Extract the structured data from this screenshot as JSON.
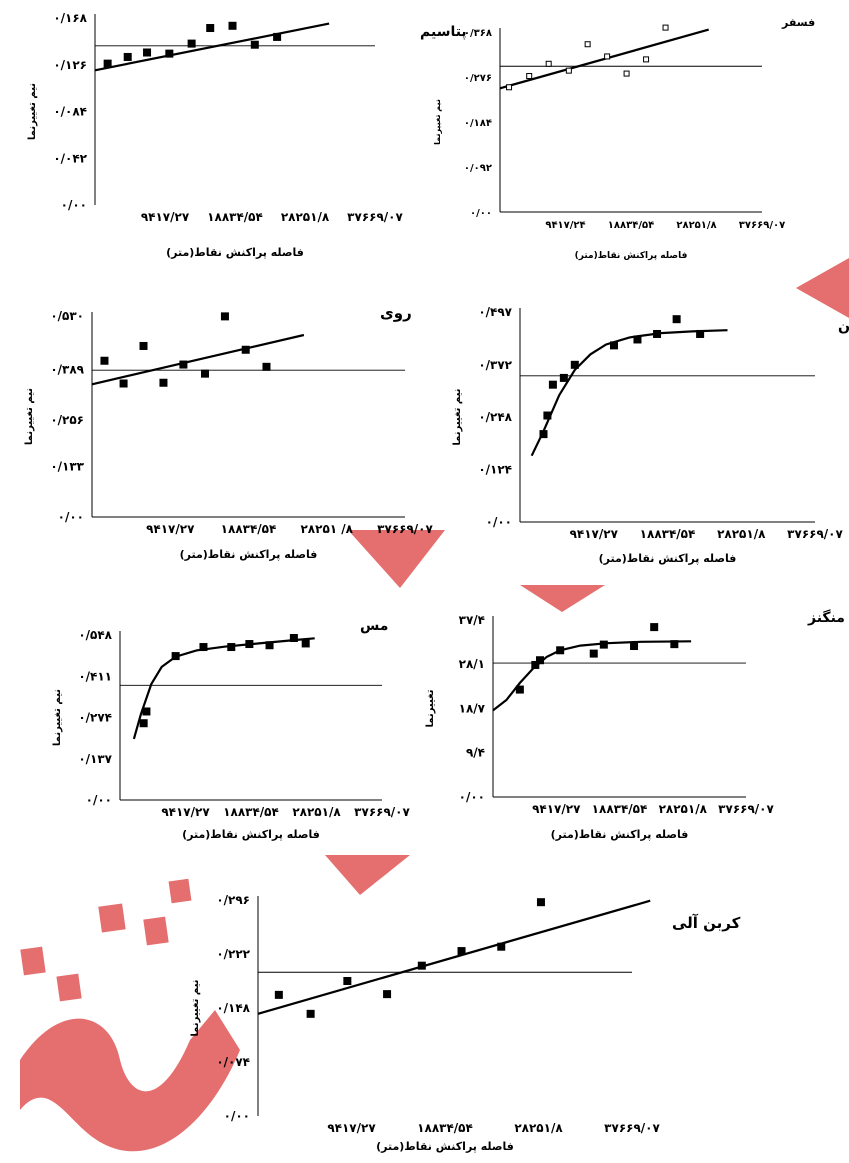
{
  "watermark": {
    "color": "#e05555"
  },
  "chart_data": [
    {
      "id": "potassium",
      "type": "scatter",
      "fit": "linear",
      "title": "پتاسیم",
      "ylabel": "نیم تغییرنما",
      "xlabel": "فاصله پراکنش نقاط(متر)",
      "ytick_labels": [
        "۰/۰۰",
        "۰/۰۴۲",
        "۰/۰۸۴",
        "۰/۱۲۶",
        "۰/۱۶۸"
      ],
      "yticks": [
        0,
        0.042,
        0.084,
        0.126,
        0.168
      ],
      "ylim": [
        0,
        0.168
      ],
      "xtick_labels": [
        "۹۴۱۷/۲۷",
        "۱۸۸۳۴/۵۴",
        "۲۸۲۵۱/۸",
        "۳۷۶۶۹/۰۷"
      ],
      "xticks": [
        9417.27,
        18834.54,
        28251.8,
        37669.07
      ],
      "xlim": [
        0,
        37669.07
      ],
      "sill": 0.143,
      "points": [
        [
          1700,
          0.127
        ],
        [
          4400,
          0.133
        ],
        [
          7000,
          0.137
        ],
        [
          10000,
          0.136
        ],
        [
          13000,
          0.145
        ],
        [
          15500,
          0.159
        ],
        [
          18500,
          0.161
        ],
        [
          21500,
          0.144
        ],
        [
          24500,
          0.151
        ]
      ],
      "line": [
        [
          0,
          0.121
        ],
        [
          31500,
          0.163
        ]
      ],
      "box": false
    },
    {
      "id": "phosphorus",
      "type": "scatter",
      "fit": "linear",
      "title": "فسفر",
      "ylabel": "نیم تغییرنما",
      "xlabel": "فاصله پراکنش نقاط(متر)",
      "ytick_labels": [
        "۰/۰۰",
        "۰/۰۹۲",
        "۰/۱۸۴",
        "۰/۲۷۶",
        "۰/۳۶۸"
      ],
      "yticks": [
        0,
        0.092,
        0.184,
        0.276,
        0.368
      ],
      "ylim": [
        0,
        0.368
      ],
      "xtick_labels": [
        "۹۴۱۷/۲۴",
        "۱۸۸۳۴/۵۴",
        "۲۸۲۵۱/۸",
        "۳۷۶۶۹/۰۷"
      ],
      "xticks": [
        9417.24,
        18834.54,
        28251.8,
        37669.07
      ],
      "xlim": [
        0,
        37669.07
      ],
      "sill": 0.298,
      "points": [
        [
          1300,
          0.255
        ],
        [
          4200,
          0.278
        ],
        [
          7000,
          0.303
        ],
        [
          9900,
          0.289
        ],
        [
          12600,
          0.343
        ],
        [
          15400,
          0.318
        ],
        [
          18200,
          0.283
        ],
        [
          21000,
          0.312
        ],
        [
          23800,
          0.377
        ]
      ],
      "line": [
        [
          0,
          0.253
        ],
        [
          30000,
          0.373
        ]
      ],
      "box": true
    },
    {
      "id": "zinc",
      "type": "scatter",
      "fit": "linear",
      "title": "روی",
      "ylabel": "نیم تغییرنما",
      "xlabel": "فاصله پراکنش نقاط(متر)",
      "ytick_labels": [
        "۰/۰۰",
        "۰/۱۳۳",
        "۰/۲۵۶",
        "۰/۳۸۹",
        "۰/۵۳۰"
      ],
      "yticks": [
        0,
        0.133,
        0.256,
        0.389,
        0.53
      ],
      "ylim": [
        0,
        0.53
      ],
      "xtick_labels": [
        "۹۴۱۷/۲۷",
        "۱۸۸۳۴/۵۴",
        "۲۸۲۵۱ /۸",
        "۳۷۶۶۹/۰۷"
      ],
      "xticks": [
        9417.27,
        18834.54,
        28251.8,
        37669.07
      ],
      "xlim": [
        0,
        37669.07
      ],
      "sill": 0.387,
      "points": [
        [
          1500,
          0.412
        ],
        [
          3800,
          0.352
        ],
        [
          6200,
          0.451
        ],
        [
          8600,
          0.354
        ],
        [
          11000,
          0.402
        ],
        [
          13600,
          0.378
        ],
        [
          16000,
          0.529
        ],
        [
          18500,
          0.441
        ],
        [
          21000,
          0.396
        ]
      ],
      "line": [
        [
          0,
          0.35
        ],
        [
          25500,
          0.48
        ]
      ],
      "box": true
    },
    {
      "id": "iron",
      "type": "scatter",
      "fit": "spherical",
      "title": "آهن",
      "ylabel": "نیم تغییرنما",
      "xlabel": "فاصله پراکنش نقاط(متر)",
      "ytick_labels": [
        "۰/۰۰",
        "۰/۱۲۴",
        "۰/۲۴۸",
        "۰/۳۷۲",
        "۰/۴۹۷"
      ],
      "yticks": [
        0,
        0.124,
        0.248,
        0.372,
        0.497
      ],
      "ylim": [
        0,
        0.497
      ],
      "xtick_labels": [
        "۹۴۱۷/۲۷",
        "۱۸۸۳۴/۵۴",
        "۲۸۲۵۱/۸",
        "۳۷۶۶۹/۰۷"
      ],
      "xticks": [
        9417.27,
        18834.54,
        28251.8,
        37669.07
      ],
      "xlim": [
        0,
        37669.07
      ],
      "sill": 0.346,
      "points": [
        [
          3000,
          0.208
        ],
        [
          3500,
          0.252
        ],
        [
          4200,
          0.325
        ],
        [
          5600,
          0.341
        ],
        [
          7000,
          0.372
        ],
        [
          12000,
          0.418
        ],
        [
          15000,
          0.432
        ],
        [
          17500,
          0.445
        ],
        [
          20000,
          0.48
        ],
        [
          23000,
          0.445
        ]
      ],
      "line": [
        [
          1500,
          0.157
        ],
        [
          3000,
          0.215
        ],
        [
          5000,
          0.3
        ],
        [
          7000,
          0.36
        ],
        [
          9000,
          0.397
        ],
        [
          11000,
          0.42
        ],
        [
          14000,
          0.437
        ],
        [
          18000,
          0.447
        ],
        [
          22000,
          0.451
        ],
        [
          26500,
          0.454
        ]
      ],
      "box": true
    },
    {
      "id": "copper",
      "type": "scatter",
      "fit": "spherical",
      "title": "مس",
      "ylabel": "نیم تغییرنما",
      "xlabel": "فاصله پراکنش نقاط(متر)",
      "ytick_labels": [
        "۰/۰۰",
        "۰/۱۳۷",
        "۰/۲۷۴",
        "۰/۴۱۱",
        "۰/۵۴۸"
      ],
      "yticks": [
        0,
        0.137,
        0.274,
        0.411,
        0.548
      ],
      "ylim": [
        0,
        0.548
      ],
      "xtick_labels": [
        "۹۴۱۷/۲۷",
        "۱۸۸۳۴/۵۴",
        "۲۸۲۵۱/۸",
        "۳۷۶۶۹/۰۷"
      ],
      "xticks": [
        9417.27,
        18834.54,
        28251.8,
        37669.07
      ],
      "xlim": [
        0,
        37669.07
      ],
      "sill": 0.381,
      "points": [
        [
          3400,
          0.255
        ],
        [
          3800,
          0.294
        ],
        [
          8000,
          0.478
        ],
        [
          12000,
          0.508
        ],
        [
          16000,
          0.508
        ],
        [
          18600,
          0.518
        ],
        [
          21500,
          0.514
        ],
        [
          25000,
          0.538
        ],
        [
          26700,
          0.52
        ]
      ],
      "line": [
        [
          2000,
          0.203
        ],
        [
          3000,
          0.285
        ],
        [
          4500,
          0.385
        ],
        [
          6000,
          0.442
        ],
        [
          8000,
          0.476
        ],
        [
          11000,
          0.497
        ],
        [
          15000,
          0.509
        ],
        [
          20000,
          0.52
        ],
        [
          25000,
          0.531
        ],
        [
          28000,
          0.537
        ]
      ],
      "box": true
    },
    {
      "id": "manganese",
      "type": "scatter",
      "fit": "spherical",
      "title": "منگنز",
      "ylabel": "تغییرنما",
      "xlabel": "فاصله پراکنش نقاط(متر)",
      "ytick_labels": [
        "۰/۰۰",
        "۹/۴",
        "۱۸/۷",
        "۲۸/۱",
        "۳۷/۴"
      ],
      "yticks": [
        0,
        9.4,
        18.7,
        28.1,
        37.4
      ],
      "ylim": [
        0,
        37.4
      ],
      "xtick_labels": [
        "۹۴۱۷/۲۷",
        "۱۸۸۳۴/۵۴",
        "۲۸۲۵۱/۸",
        "۳۷۶۶۹/۰۷"
      ],
      "xticks": [
        9417.27,
        18834.54,
        28251.8,
        37669.07
      ],
      "xlim": [
        0,
        37669.07
      ],
      "sill": 28.3,
      "points": [
        [
          4000,
          22.7
        ],
        [
          6300,
          27.9
        ],
        [
          7000,
          28.9
        ],
        [
          10000,
          31.0
        ],
        [
          15000,
          30.3
        ],
        [
          16500,
          32.2
        ],
        [
          21000,
          31.9
        ],
        [
          24000,
          35.9
        ],
        [
          27000,
          32.3
        ]
      ],
      "line": [
        [
          0,
          18.3
        ],
        [
          2000,
          20.5
        ],
        [
          4000,
          24.1
        ],
        [
          6000,
          27.2
        ],
        [
          8000,
          29.6
        ],
        [
          10000,
          31.0
        ],
        [
          13000,
          32.0
        ],
        [
          17000,
          32.5
        ],
        [
          22000,
          32.8
        ],
        [
          29500,
          32.9
        ]
      ],
      "box": true
    },
    {
      "id": "organic-carbon",
      "type": "scatter",
      "fit": "linear",
      "title": "کربن آلی",
      "ylabel": "نیم تغییرنما",
      "xlabel": "فاصله پراکنش نقاط(متر)",
      "ytick_labels": [
        "۰/۰۰",
        "۰/۰۷۴",
        "۰/۱۴۸",
        "۰/۲۲۲",
        "۰/۲۹۶"
      ],
      "yticks": [
        0,
        0.074,
        0.148,
        0.222,
        0.296
      ],
      "ylim": [
        0,
        0.296
      ],
      "xtick_labels": [
        "۹۴۱۷/۲۷",
        "۱۸۸۳۴/۵۴",
        "۲۸۲۵۱/۸",
        "۳۷۶۶۹/۰۷"
      ],
      "xticks": [
        9417.27,
        18834.54,
        28251.8,
        37669.07
      ],
      "xlim": [
        0,
        37669.07
      ],
      "sill": 0.197,
      "points": [
        [
          2100,
          0.166
        ],
        [
          5300,
          0.14
        ],
        [
          9000,
          0.185
        ],
        [
          13000,
          0.167
        ],
        [
          16500,
          0.206
        ],
        [
          20500,
          0.226
        ],
        [
          24500,
          0.232
        ],
        [
          28500,
          0.293
        ]
      ],
      "line": [
        [
          0,
          0.14
        ],
        [
          39500,
          0.295
        ]
      ],
      "box": false
    }
  ]
}
